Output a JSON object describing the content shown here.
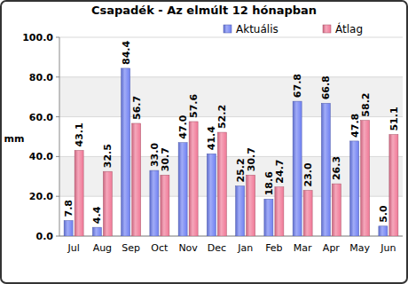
{
  "chart_data": {
    "type": "bar",
    "title": "Csapadék - Az elmúlt 12 hónapban",
    "y_label": "mm",
    "categories": [
      "Jul",
      "Aug",
      "Sep",
      "Oct",
      "Nov",
      "Dec",
      "Jan",
      "Feb",
      "Mar",
      "Apr",
      "May",
      "Jun"
    ],
    "series": [
      {
        "name": "Aktuális",
        "color": "#6f80f2",
        "values": [
          7.8,
          4.4,
          84.4,
          33.0,
          47.0,
          41.4,
          25.2,
          18.6,
          67.8,
          66.8,
          47.8,
          5.0
        ],
        "value_labels": [
          "7.8",
          "4.4",
          "84.4",
          "33.0",
          "47.0",
          "41.4",
          "25.2",
          "18.6",
          "67.8",
          "66.8",
          "47.8",
          "5.0"
        ]
      },
      {
        "name": "Átlag",
        "color": "#f07896",
        "values": [
          43.1,
          32.5,
          56.7,
          30.7,
          57.6,
          52.2,
          30.7,
          24.7,
          23.0,
          26.3,
          58.2,
          51.1
        ],
        "value_labels": [
          "43.1",
          "32.5",
          "56.7",
          "30.7",
          "57.6",
          "52.2",
          "30.7",
          "24.7",
          "23.0",
          "26.3",
          "58.2",
          "51.1"
        ]
      }
    ],
    "ylim": [
      0,
      100
    ],
    "yticks": [
      {
        "value": 0,
        "label": "0.0"
      },
      {
        "value": 20,
        "label": "20.0"
      },
      {
        "value": 40,
        "label": "40.0"
      },
      {
        "value": 60,
        "label": "60.0"
      },
      {
        "value": 80,
        "label": "80.0"
      },
      {
        "value": 100,
        "label": "100.0"
      }
    ],
    "grid": true,
    "legend": "top-right",
    "data_labels": true
  }
}
